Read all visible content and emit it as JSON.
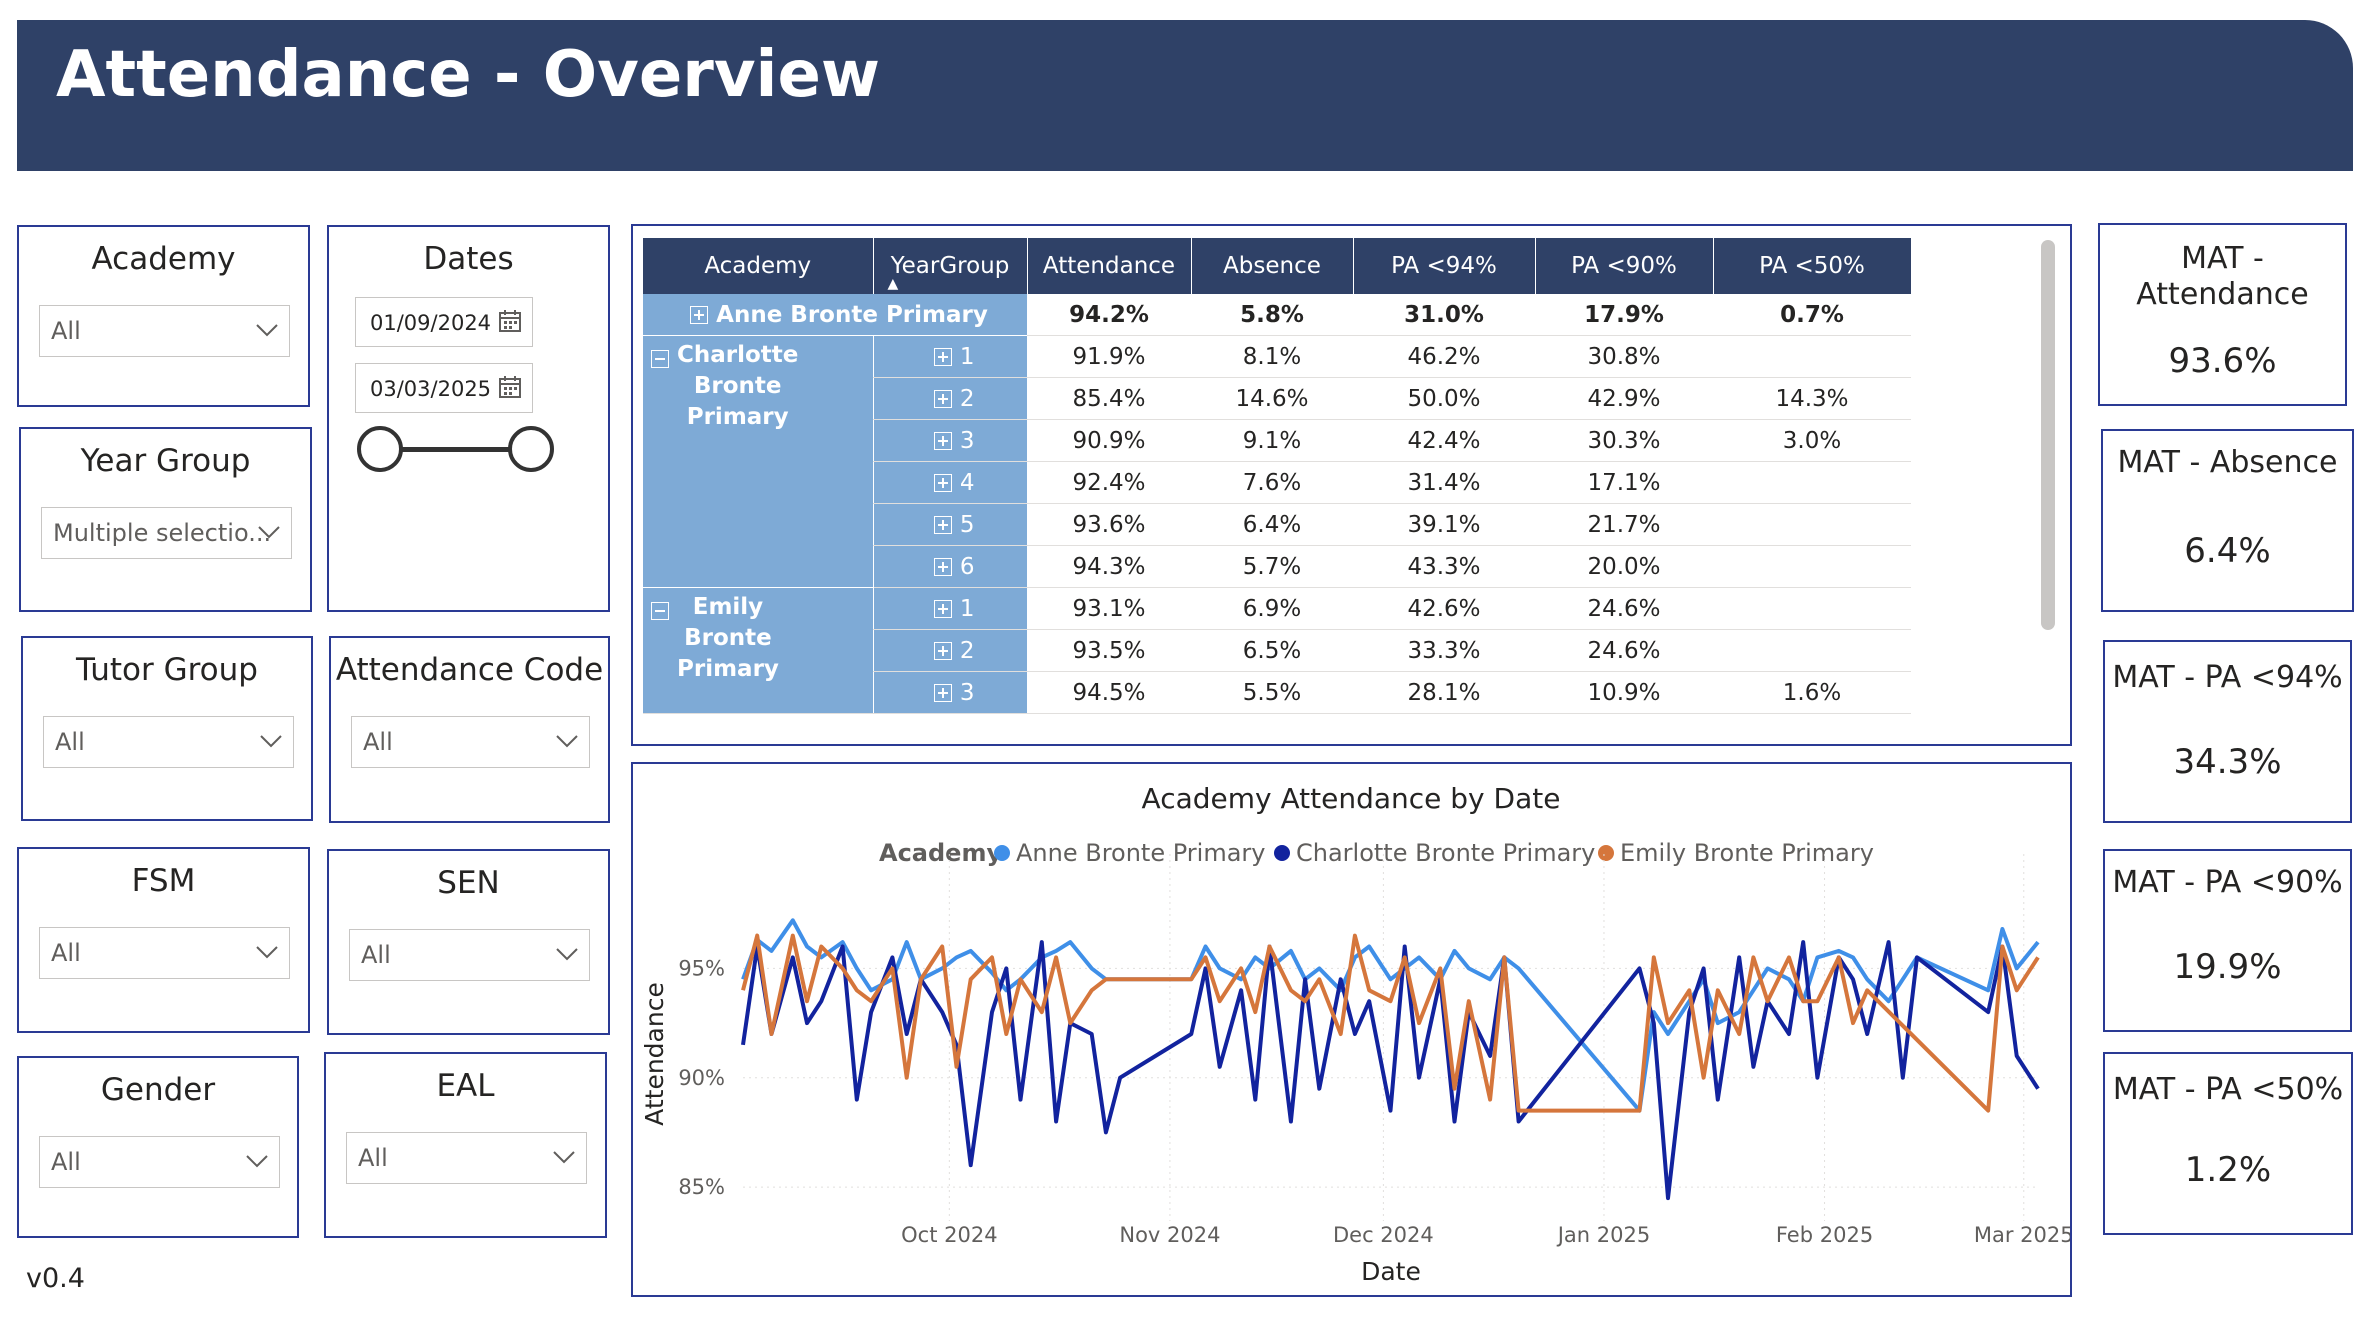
{
  "header": {
    "title": "Attendance - Overview"
  },
  "slicers": {
    "academy": {
      "title": "Academy",
      "value": "All"
    },
    "dates": {
      "title": "Dates",
      "start": "01/09/2024",
      "end": "03/03/2025"
    },
    "year_group": {
      "title": "Year Group",
      "value": "Multiple selectio..."
    },
    "tutor_group": {
      "title": "Tutor Group",
      "value": "All"
    },
    "attendance_code": {
      "title": "Attendance Code",
      "value": "All"
    },
    "fsm": {
      "title": "FSM",
      "value": "All"
    },
    "sen": {
      "title": "SEN",
      "value": "All"
    },
    "gender": {
      "title": "Gender",
      "value": "All"
    },
    "eal": {
      "title": "EAL",
      "value": "All"
    }
  },
  "version": "v0.4",
  "matrix": {
    "columns": [
      "Academy",
      "YearGroup",
      "Attendance",
      "Absence",
      "PA <94%",
      "PA <90%",
      "PA <50%"
    ],
    "rows": [
      {
        "academy": "Anne Bronte Primary",
        "year": "",
        "att": "94.2%",
        "abs": "5.8%",
        "pa94": "31.0%",
        "pa90": "17.9%",
        "pa50": "0.7%"
      },
      {
        "academy": "Charlotte Bronte Primary",
        "year": "1",
        "att": "91.9%",
        "abs": "8.1%",
        "pa94": "46.2%",
        "pa90": "30.8%",
        "pa50": ""
      },
      {
        "academy": "",
        "year": "2",
        "att": "85.4%",
        "abs": "14.6%",
        "pa94": "50.0%",
        "pa90": "42.9%",
        "pa50": "14.3%"
      },
      {
        "academy": "",
        "year": "3",
        "att": "90.9%",
        "abs": "9.1%",
        "pa94": "42.4%",
        "pa90": "30.3%",
        "pa50": "3.0%"
      },
      {
        "academy": "",
        "year": "4",
        "att": "92.4%",
        "abs": "7.6%",
        "pa94": "31.4%",
        "pa90": "17.1%",
        "pa50": ""
      },
      {
        "academy": "",
        "year": "5",
        "att": "93.6%",
        "abs": "6.4%",
        "pa94": "39.1%",
        "pa90": "21.7%",
        "pa50": ""
      },
      {
        "academy": "",
        "year": "6",
        "att": "94.3%",
        "abs": "5.7%",
        "pa94": "43.3%",
        "pa90": "20.0%",
        "pa50": ""
      },
      {
        "academy": "Emily Bronte Primary",
        "year": "1",
        "att": "93.1%",
        "abs": "6.9%",
        "pa94": "42.6%",
        "pa90": "24.6%",
        "pa50": ""
      },
      {
        "academy": "",
        "year": "2",
        "att": "93.5%",
        "abs": "6.5%",
        "pa94": "33.3%",
        "pa90": "24.6%",
        "pa50": ""
      },
      {
        "academy": "",
        "year": "3",
        "att": "94.5%",
        "abs": "5.5%",
        "pa94": "28.1%",
        "pa90": "10.9%",
        "pa50": "1.6%"
      }
    ],
    "academy_names": {
      "anne": "Anne Bronte Primary",
      "charlotte": "Charlotte\nBronte\nPrimary",
      "emily": "Emily\nBronte\nPrimary"
    }
  },
  "kpis": [
    {
      "title": "MAT -\nAttendance",
      "value": "93.6%"
    },
    {
      "title": "MAT - Absence",
      "value": "6.4%"
    },
    {
      "title": "MAT - PA <94%",
      "value": "34.3%"
    },
    {
      "title": "MAT - PA <90%",
      "value": "19.9%"
    },
    {
      "title": "MAT - PA <50%",
      "value": "1.2%"
    }
  ],
  "colors": {
    "header": "#2f4167",
    "anne": "#3f8fe8",
    "charlotte": "#12239e",
    "emily": "#d5763c",
    "matrix_row": "#7eaad6"
  },
  "chart_data": {
    "type": "line",
    "title": "Academy Attendance by Date",
    "xlabel": "Date",
    "ylabel": "Attendance",
    "legend_title": "Academy",
    "legend_position": "top",
    "x_range": [
      "2024-09-02",
      "2025-03-03"
    ],
    "x_ticks": [
      "Oct 2024",
      "Nov 2024",
      "Dec 2024",
      "Jan 2025",
      "Feb 2025",
      "Mar 2025"
    ],
    "x_tick_dates": [
      "2024-10-01",
      "2024-11-01",
      "2024-12-01",
      "2025-01-01",
      "2025-02-01",
      "2025-03-01"
    ],
    "ylim": [
      0.84,
      0.984
    ],
    "y_ticks": [
      0.85,
      0.9,
      0.95
    ],
    "y_tick_labels": [
      "85%",
      "90%",
      "95%"
    ],
    "grid": true,
    "series": [
      {
        "name": "Anne Bronte Primary",
        "color": "#3f8fe8",
        "x": [
          "2024-09-02",
          "2024-09-04",
          "2024-09-06",
          "2024-09-09",
          "2024-09-11",
          "2024-09-13",
          "2024-09-16",
          "2024-09-18",
          "2024-09-20",
          "2024-09-23",
          "2024-09-25",
          "2024-09-27",
          "2024-09-30",
          "2024-10-02",
          "2024-10-04",
          "2024-10-07",
          "2024-10-09",
          "2024-10-11",
          "2024-10-14",
          "2024-10-16",
          "2024-10-18",
          "2024-10-21",
          "2024-10-23",
          "2024-11-04",
          "2024-11-06",
          "2024-11-08",
          "2024-11-11",
          "2024-11-13",
          "2024-11-15",
          "2024-11-18",
          "2024-11-20",
          "2024-11-22",
          "2024-11-25",
          "2024-11-27",
          "2024-11-29",
          "2024-12-02",
          "2024-12-04",
          "2024-12-06",
          "2024-12-09",
          "2024-12-11",
          "2024-12-13",
          "2024-12-16",
          "2024-12-18",
          "2024-12-20",
          "2025-01-06",
          "2025-01-08",
          "2025-01-10",
          "2025-01-13",
          "2025-01-15",
          "2025-01-17",
          "2025-01-20",
          "2025-01-22",
          "2025-01-24",
          "2025-01-27",
          "2025-01-29",
          "2025-01-31",
          "2025-02-03",
          "2025-02-05",
          "2025-02-07",
          "2025-02-10",
          "2025-02-12",
          "2025-02-14",
          "2025-02-24",
          "2025-02-26",
          "2025-02-28",
          "2025-03-03"
        ],
        "values": [
          0.945,
          0.963,
          0.958,
          0.972,
          0.96,
          0.955,
          0.962,
          0.95,
          0.94,
          0.945,
          0.962,
          0.945,
          0.95,
          0.955,
          0.958,
          0.948,
          0.94,
          0.945,
          0.955,
          0.958,
          0.962,
          0.95,
          0.945,
          0.945,
          0.96,
          0.95,
          0.945,
          0.955,
          0.95,
          0.958,
          0.945,
          0.95,
          0.94,
          0.955,
          0.96,
          0.945,
          0.95,
          0.955,
          0.945,
          0.958,
          0.95,
          0.945,
          0.955,
          0.95,
          0.885,
          0.93,
          0.92,
          0.935,
          0.945,
          0.925,
          0.93,
          0.94,
          0.95,
          0.945,
          0.935,
          0.955,
          0.958,
          0.955,
          0.945,
          0.935,
          0.945,
          0.955,
          0.94,
          0.968,
          0.95,
          0.962
        ]
      },
      {
        "name": "Charlotte Bronte Primary",
        "color": "#12239e",
        "x": [
          "2024-09-02",
          "2024-09-04",
          "2024-09-06",
          "2024-09-09",
          "2024-09-11",
          "2024-09-13",
          "2024-09-16",
          "2024-09-18",
          "2024-09-20",
          "2024-09-23",
          "2024-09-25",
          "2024-09-27",
          "2024-09-30",
          "2024-10-02",
          "2024-10-04",
          "2024-10-07",
          "2024-10-09",
          "2024-10-11",
          "2024-10-14",
          "2024-10-16",
          "2024-10-18",
          "2024-10-21",
          "2024-10-23",
          "2024-10-25",
          "2024-11-04",
          "2024-11-06",
          "2024-11-08",
          "2024-11-11",
          "2024-11-13",
          "2024-11-15",
          "2024-11-18",
          "2024-11-20",
          "2024-11-22",
          "2024-11-25",
          "2024-11-27",
          "2024-11-29",
          "2024-12-02",
          "2024-12-04",
          "2024-12-06",
          "2024-12-09",
          "2024-12-11",
          "2024-12-13",
          "2024-12-16",
          "2024-12-18",
          "2024-12-20",
          "2025-01-06",
          "2025-01-08",
          "2025-01-10",
          "2025-01-13",
          "2025-01-15",
          "2025-01-17",
          "2025-01-20",
          "2025-01-22",
          "2025-01-24",
          "2025-01-27",
          "2025-01-29",
          "2025-01-31",
          "2025-02-03",
          "2025-02-05",
          "2025-02-07",
          "2025-02-10",
          "2025-02-12",
          "2025-02-14",
          "2025-02-24",
          "2025-02-26",
          "2025-02-28",
          "2025-03-03"
        ],
        "values": [
          0.915,
          0.96,
          0.92,
          0.955,
          0.925,
          0.935,
          0.96,
          0.89,
          0.93,
          0.955,
          0.92,
          0.945,
          0.93,
          0.915,
          0.86,
          0.93,
          0.95,
          0.89,
          0.962,
          0.88,
          0.925,
          0.92,
          0.875,
          0.9,
          0.92,
          0.95,
          0.905,
          0.94,
          0.89,
          0.96,
          0.88,
          0.945,
          0.895,
          0.945,
          0.92,
          0.935,
          0.885,
          0.96,
          0.9,
          0.945,
          0.88,
          0.93,
          0.91,
          0.955,
          0.88,
          0.95,
          0.925,
          0.845,
          0.93,
          0.95,
          0.89,
          0.955,
          0.905,
          0.935,
          0.92,
          0.962,
          0.9,
          0.955,
          0.945,
          0.92,
          0.962,
          0.9,
          0.955,
          0.93,
          0.96,
          0.91,
          0.895
        ]
      },
      {
        "name": "Emily Bronte Primary",
        "color": "#d5763c",
        "x": [
          "2024-09-02",
          "2024-09-04",
          "2024-09-06",
          "2024-09-09",
          "2024-09-11",
          "2024-09-13",
          "2024-09-16",
          "2024-09-18",
          "2024-09-20",
          "2024-09-23",
          "2024-09-25",
          "2024-09-27",
          "2024-09-30",
          "2024-10-02",
          "2024-10-04",
          "2024-10-07",
          "2024-10-09",
          "2024-10-11",
          "2024-10-14",
          "2024-10-16",
          "2024-10-18",
          "2024-10-21",
          "2024-10-23",
          "2024-11-04",
          "2024-11-06",
          "2024-11-08",
          "2024-11-11",
          "2024-11-13",
          "2024-11-15",
          "2024-11-18",
          "2024-11-20",
          "2024-11-22",
          "2024-11-25",
          "2024-11-27",
          "2024-11-29",
          "2024-12-02",
          "2024-12-04",
          "2024-12-06",
          "2024-12-09",
          "2024-12-11",
          "2024-12-13",
          "2024-12-16",
          "2024-12-18",
          "2024-12-20",
          "2025-01-06",
          "2025-01-08",
          "2025-01-10",
          "2025-01-13",
          "2025-01-15",
          "2025-01-17",
          "2025-01-20",
          "2025-01-22",
          "2025-01-24",
          "2025-01-27",
          "2025-01-29",
          "2025-01-31",
          "2025-02-03",
          "2025-02-05",
          "2025-02-07",
          "2025-02-24",
          "2025-02-26",
          "2025-02-28",
          "2025-03-03"
        ],
        "values": [
          0.94,
          0.965,
          0.92,
          0.965,
          0.935,
          0.96,
          0.95,
          0.94,
          0.935,
          0.95,
          0.9,
          0.945,
          0.96,
          0.905,
          0.945,
          0.955,
          0.92,
          0.945,
          0.93,
          0.955,
          0.925,
          0.94,
          0.945,
          0.945,
          0.955,
          0.935,
          0.95,
          0.93,
          0.96,
          0.94,
          0.935,
          0.945,
          0.92,
          0.965,
          0.94,
          0.935,
          0.955,
          0.925,
          0.95,
          0.895,
          0.935,
          0.89,
          0.955,
          0.885,
          0.885,
          0.955,
          0.925,
          0.94,
          0.9,
          0.94,
          0.92,
          0.955,
          0.935,
          0.955,
          0.935,
          0.935,
          0.955,
          0.925,
          0.94,
          0.885,
          0.96,
          0.94,
          0.955
        ]
      }
    ]
  }
}
